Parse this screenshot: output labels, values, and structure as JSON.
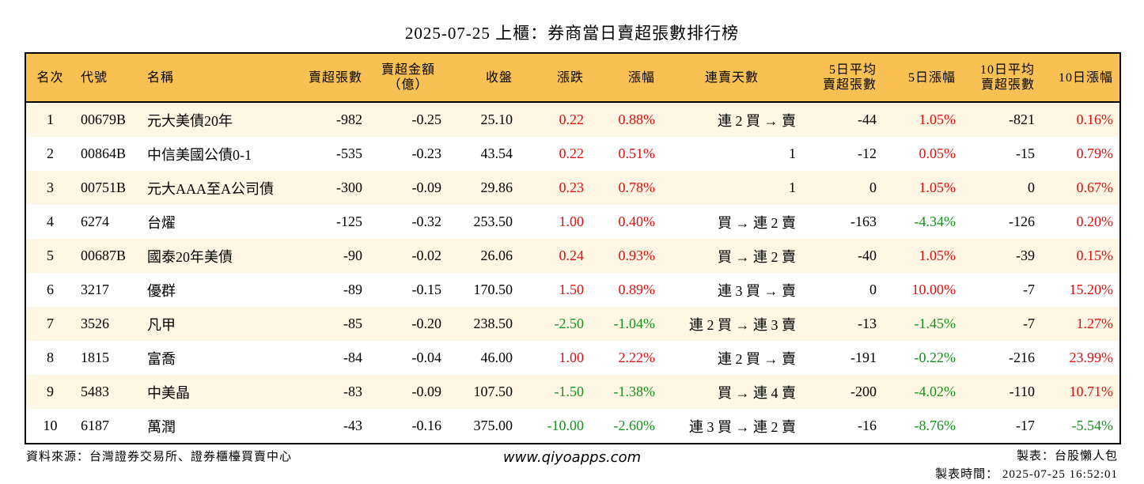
{
  "title": "2025-07-25 上櫃：券商當日賣超張數排行榜",
  "headers": {
    "rank": "名次",
    "code": "代號",
    "name": "名稱",
    "sell_lots": "賣超張數",
    "sell_amount_1": "賣超金額",
    "sell_amount_2": "（億）",
    "close": "收盤",
    "change": "漲跌",
    "change_pct": "漲幅",
    "streak": "連賣天數",
    "avg5_1": "5日平均",
    "avg5_2": "賣超張數",
    "pct5": "5日漲幅",
    "avg10_1": "10日平均",
    "avg10_2": "賣超張數",
    "pct10": "10日漲幅"
  },
  "rows": [
    {
      "rank": "1",
      "code": "00679B",
      "name": "元大美債20年",
      "sell_lots": "-982",
      "sell_amount": "-0.25",
      "close": "25.10",
      "change": "0.22",
      "change_pct": "0.88%",
      "streak": "連 2 買 → 賣",
      "avg5": "-44",
      "pct5": "1.05%",
      "avg10": "-821",
      "pct10": "0.16%"
    },
    {
      "rank": "2",
      "code": "00864B",
      "name": "中信美國公債0-1",
      "sell_lots": "-535",
      "sell_amount": "-0.23",
      "close": "43.54",
      "change": "0.22",
      "change_pct": "0.51%",
      "streak": "1",
      "avg5": "-12",
      "pct5": "0.05%",
      "avg10": "-15",
      "pct10": "0.79%"
    },
    {
      "rank": "3",
      "code": "00751B",
      "name": "元大AAA至A公司債",
      "sell_lots": "-300",
      "sell_amount": "-0.09",
      "close": "29.86",
      "change": "0.23",
      "change_pct": "0.78%",
      "streak": "1",
      "avg5": "0",
      "pct5": "1.05%",
      "avg10": "0",
      "pct10": "0.67%"
    },
    {
      "rank": "4",
      "code": "6274",
      "name": "台燿",
      "sell_lots": "-125",
      "sell_amount": "-0.32",
      "close": "253.50",
      "change": "1.00",
      "change_pct": "0.40%",
      "streak": "買 → 連 2 賣",
      "avg5": "-163",
      "pct5": "-4.34%",
      "avg10": "-126",
      "pct10": "0.20%"
    },
    {
      "rank": "5",
      "code": "00687B",
      "name": "國泰20年美債",
      "sell_lots": "-90",
      "sell_amount": "-0.02",
      "close": "26.06",
      "change": "0.24",
      "change_pct": "0.93%",
      "streak": "買 → 連 2 賣",
      "avg5": "-40",
      "pct5": "1.05%",
      "avg10": "-39",
      "pct10": "0.15%"
    },
    {
      "rank": "6",
      "code": "3217",
      "name": "優群",
      "sell_lots": "-89",
      "sell_amount": "-0.15",
      "close": "170.50",
      "change": "1.50",
      "change_pct": "0.89%",
      "streak": "連 3 買 → 賣",
      "avg5": "0",
      "pct5": "10.00%",
      "avg10": "-7",
      "pct10": "15.20%"
    },
    {
      "rank": "7",
      "code": "3526",
      "name": "凡甲",
      "sell_lots": "-85",
      "sell_amount": "-0.20",
      "close": "238.50",
      "change": "-2.50",
      "change_pct": "-1.04%",
      "streak": "連 2 買 → 連 3 賣",
      "avg5": "-13",
      "pct5": "-1.45%",
      "avg10": "-7",
      "pct10": "1.27%"
    },
    {
      "rank": "8",
      "code": "1815",
      "name": "富喬",
      "sell_lots": "-84",
      "sell_amount": "-0.04",
      "close": "46.00",
      "change": "1.00",
      "change_pct": "2.22%",
      "streak": "連 2 買 → 賣",
      "avg5": "-191",
      "pct5": "-0.22%",
      "avg10": "-216",
      "pct10": "23.99%"
    },
    {
      "rank": "9",
      "code": "5483",
      "name": "中美晶",
      "sell_lots": "-83",
      "sell_amount": "-0.09",
      "close": "107.50",
      "change": "-1.50",
      "change_pct": "-1.38%",
      "streak": "買 → 連 4 賣",
      "avg5": "-200",
      "pct5": "-4.02%",
      "avg10": "-110",
      "pct10": "10.71%"
    },
    {
      "rank": "10",
      "code": "6187",
      "name": "萬潤",
      "sell_lots": "-43",
      "sell_amount": "-0.16",
      "close": "375.00",
      "change": "-10.00",
      "change_pct": "-2.60%",
      "streak": "連 3 買 → 連 2 賣",
      "avg5": "-16",
      "pct5": "-8.76%",
      "avg10": "-17",
      "pct10": "-5.54%"
    }
  ],
  "footer": {
    "source": "資料來源：台灣證券交易所、證券櫃檯買賣中心",
    "website": "www.qiyoapps.com",
    "maker": "製表：台股懶人包",
    "made_time": "製表時間： 2025-07-25 16:52:01"
  },
  "colors": {
    "header_bg": "#f9c054",
    "row_alt_bg": "#fff6e3",
    "up": "#e10f0f",
    "down": "#14911e"
  }
}
